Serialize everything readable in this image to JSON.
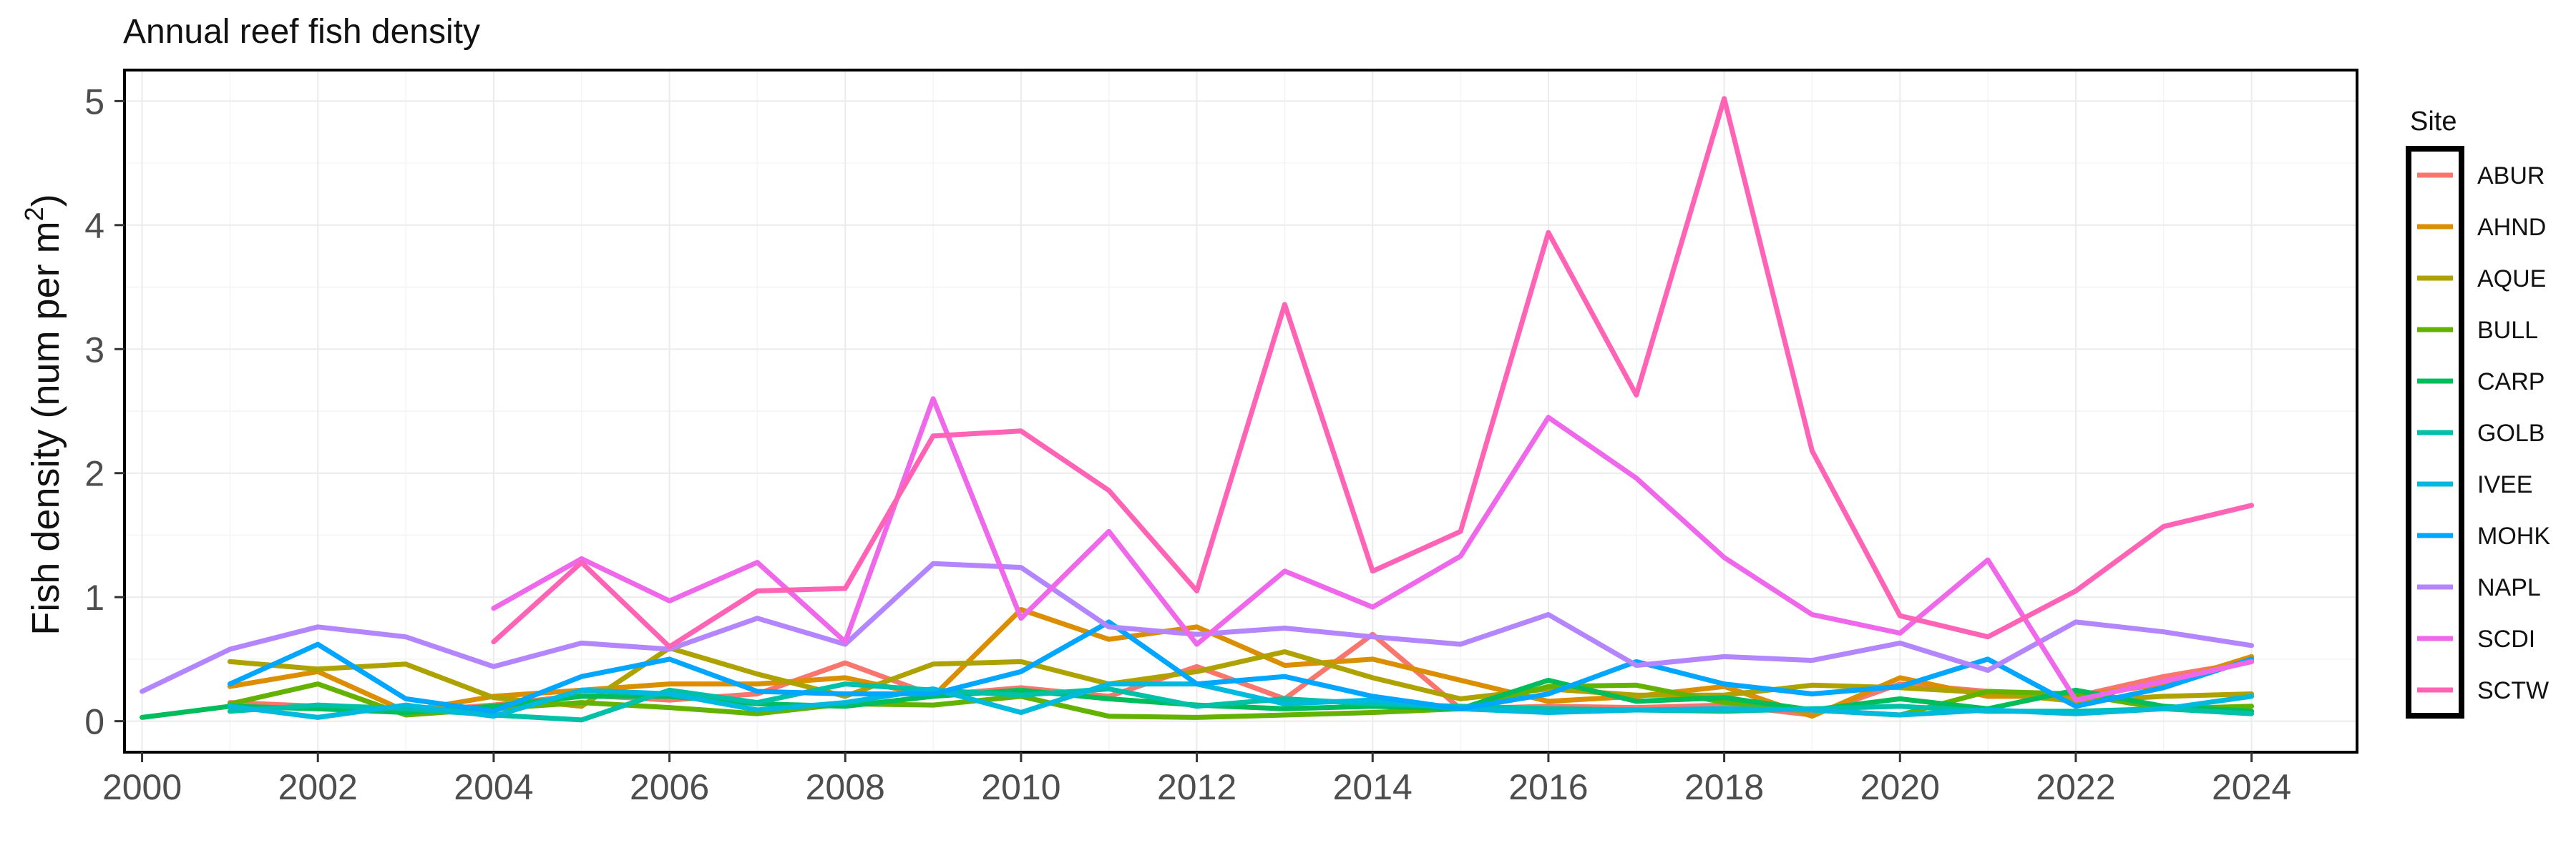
{
  "chart_data": {
    "type": "line",
    "title": "Annual reef fish density",
    "ylabel_main": "Fish density (num per  m",
    "ylabel_sup": "2",
    "ylabel_close": ")",
    "xlabel": "",
    "xlim": [
      1999.8,
      2025.2
    ],
    "ylim": [
      -0.25,
      5.25
    ],
    "x_ticks": [
      2000,
      2002,
      2004,
      2006,
      2008,
      2010,
      2012,
      2014,
      2016,
      2018,
      2020,
      2022,
      2024
    ],
    "x_tick_labels": [
      "2000",
      "2002",
      "2004",
      "2006",
      "2008",
      "2010",
      "2012",
      "2014",
      "2016",
      "2018",
      "2020",
      "2022",
      "2024"
    ],
    "y_ticks": [
      0,
      1,
      2,
      3,
      4,
      5
    ],
    "y_tick_labels": [
      "0",
      "1",
      "2",
      "3",
      "4",
      "5"
    ],
    "grid": true,
    "legend_title": "Site",
    "legend_position": "right",
    "series": [
      {
        "name": "ABUR",
        "color": "#F8766D",
        "x": [
          2001,
          2002,
          2003,
          2004,
          2005,
          2006,
          2007,
          2008,
          2009,
          2010,
          2011,
          2012,
          2013,
          2014,
          2015,
          2016,
          2017,
          2018,
          2019,
          2020,
          2021,
          2022,
          2023,
          2024
        ],
        "values": [
          0.15,
          0.12,
          0.08,
          0.13,
          0.21,
          0.17,
          0.22,
          0.47,
          0.21,
          0.27,
          0.2,
          0.44,
          0.18,
          0.7,
          0.1,
          0.12,
          0.11,
          0.13,
          0.05,
          0.3,
          0.24,
          0.2,
          0.36,
          0.48
        ]
      },
      {
        "name": "AHND",
        "color": "#DB8E00",
        "x": [
          2001,
          2002,
          2003,
          2004,
          2005,
          2006,
          2007,
          2008,
          2009,
          2010,
          2011,
          2012,
          2013,
          2014,
          2015,
          2016,
          2017,
          2018,
          2019,
          2020,
          2021,
          2022,
          2023,
          2024
        ],
        "values": [
          0.28,
          0.4,
          0.08,
          0.2,
          0.25,
          0.3,
          0.3,
          0.35,
          0.2,
          0.9,
          0.66,
          0.76,
          0.45,
          0.5,
          0.33,
          0.16,
          0.2,
          0.28,
          0.04,
          0.35,
          0.2,
          0.2,
          0.3,
          0.52
        ]
      },
      {
        "name": "AQUE",
        "color": "#AEA200",
        "x": [
          2001,
          2002,
          2003,
          2004,
          2005,
          2006,
          2007,
          2008,
          2009,
          2010,
          2011,
          2012,
          2013,
          2014,
          2015,
          2016,
          2017,
          2018,
          2019,
          2020,
          2021,
          2022,
          2023,
          2024
        ],
        "values": [
          0.48,
          0.42,
          0.46,
          0.19,
          0.12,
          0.59,
          0.38,
          0.2,
          0.46,
          0.48,
          0.3,
          0.4,
          0.56,
          0.35,
          0.18,
          0.26,
          0.21,
          0.21,
          0.29,
          0.27,
          0.23,
          0.16,
          0.2,
          0.22
        ]
      },
      {
        "name": "BULL",
        "color": "#64B200",
        "x": [
          2001,
          2002,
          2003,
          2004,
          2005,
          2006,
          2007,
          2008,
          2009,
          2010,
          2011,
          2012,
          2013,
          2014,
          2015,
          2016,
          2017,
          2018,
          2019,
          2020,
          2021,
          2022,
          2023,
          2024
        ],
        "values": [
          0.14,
          0.3,
          0.05,
          0.1,
          0.15,
          0.11,
          0.06,
          0.14,
          0.13,
          0.2,
          0.04,
          0.03,
          0.05,
          0.07,
          0.1,
          0.28,
          0.29,
          0.15,
          0.09,
          0.05,
          0.24,
          0.22,
          0.1,
          0.12
        ]
      },
      {
        "name": "CARP",
        "color": "#00BD5C",
        "x": [
          2000,
          2001,
          2002,
          2003,
          2004,
          2005,
          2006,
          2007,
          2008,
          2009,
          2010,
          2011,
          2012,
          2013,
          2014,
          2015,
          2016,
          2017,
          2018,
          2019,
          2020,
          2021,
          2022,
          2023,
          2024
        ],
        "values": [
          0.03,
          0.12,
          0.1,
          0.07,
          0.12,
          0.2,
          0.2,
          0.14,
          0.12,
          0.2,
          0.25,
          0.18,
          0.13,
          0.1,
          0.12,
          0.1,
          0.33,
          0.16,
          0.19,
          0.09,
          0.18,
          0.1,
          0.25,
          0.12,
          0.08
        ]
      },
      {
        "name": "GOLB",
        "color": "#00C1A7",
        "x": [
          2001,
          2002,
          2003,
          2004,
          2005,
          2006,
          2007,
          2008,
          2009,
          2010,
          2011,
          2012,
          2013,
          2014,
          2015,
          2016,
          2017,
          2018,
          2019,
          2020,
          2021,
          2022,
          2023,
          2024
        ],
        "values": [
          0.08,
          0.13,
          0.1,
          0.05,
          0.01,
          0.25,
          0.15,
          0.3,
          0.25,
          0.21,
          0.26,
          0.12,
          0.18,
          0.14,
          0.12,
          0.1,
          0.09,
          0.08,
          0.1,
          0.12,
          0.08,
          0.08,
          0.1,
          0.06
        ]
      },
      {
        "name": "IVEE",
        "color": "#00BADE",
        "x": [
          2001,
          2002,
          2003,
          2004,
          2005,
          2006,
          2007,
          2008,
          2009,
          2010,
          2011,
          2012,
          2013,
          2014,
          2015,
          2016,
          2017,
          2018,
          2019,
          2020,
          2021,
          2022,
          2023,
          2024
        ],
        "values": [
          0.12,
          0.03,
          0.13,
          0.04,
          0.25,
          0.22,
          0.09,
          0.15,
          0.26,
          0.07,
          0.3,
          0.3,
          0.14,
          0.17,
          0.1,
          0.07,
          0.09,
          0.1,
          0.09,
          0.05,
          0.09,
          0.06,
          0.1,
          0.2
        ]
      },
      {
        "name": "MOHK",
        "color": "#00A6FF",
        "x": [
          2001,
          2002,
          2003,
          2004,
          2005,
          2006,
          2007,
          2008,
          2009,
          2010,
          2011,
          2012,
          2013,
          2014,
          2015,
          2016,
          2017,
          2018,
          2019,
          2020,
          2021,
          2022,
          2023,
          2024
        ],
        "values": [
          0.3,
          0.62,
          0.18,
          0.08,
          0.36,
          0.5,
          0.24,
          0.22,
          0.22,
          0.4,
          0.8,
          0.3,
          0.36,
          0.2,
          0.1,
          0.22,
          0.48,
          0.3,
          0.22,
          0.28,
          0.5,
          0.12,
          0.27,
          0.5
        ]
      },
      {
        "name": "NAPL",
        "color": "#B385FF",
        "x": [
          2000,
          2001,
          2002,
          2003,
          2004,
          2005,
          2006,
          2007,
          2008,
          2009,
          2010,
          2011,
          2012,
          2013,
          2014,
          2015,
          2016,
          2017,
          2018,
          2019,
          2020,
          2021,
          2022,
          2023,
          2024
        ],
        "values": [
          0.24,
          0.58,
          0.76,
          0.68,
          0.44,
          0.63,
          0.58,
          0.83,
          0.62,
          1.27,
          1.24,
          0.76,
          0.7,
          0.75,
          0.68,
          0.62,
          0.86,
          0.45,
          0.52,
          0.49,
          0.63,
          0.41,
          0.8,
          0.72,
          0.61
        ]
      },
      {
        "name": "SCDI",
        "color": "#EF67EB",
        "x": [
          2004,
          2005,
          2006,
          2007,
          2008,
          2009,
          2010,
          2011,
          2012,
          2013,
          2014,
          2015,
          2016,
          2017,
          2018,
          2019,
          2020,
          2021,
          2022,
          2023,
          2024
        ],
        "values": [
          0.91,
          1.31,
          0.97,
          1.28,
          0.64,
          2.6,
          0.83,
          1.53,
          0.62,
          1.21,
          0.92,
          1.33,
          2.45,
          1.96,
          1.32,
          0.86,
          0.71,
          1.3,
          0.17,
          0.32,
          0.48
        ]
      },
      {
        "name": "SCTW",
        "color": "#FF63B6",
        "x": [
          2004,
          2005,
          2006,
          2007,
          2008,
          2009,
          2010,
          2011,
          2012,
          2013,
          2014,
          2015,
          2016,
          2017,
          2018,
          2019,
          2020,
          2021,
          2022,
          2023,
          2024
        ],
        "values": [
          0.64,
          1.28,
          0.6,
          1.05,
          1.07,
          2.3,
          2.34,
          1.86,
          1.05,
          3.36,
          1.21,
          1.53,
          3.94,
          2.63,
          5.02,
          2.18,
          0.85,
          0.68,
          1.05,
          1.57,
          1.74
        ]
      }
    ]
  }
}
